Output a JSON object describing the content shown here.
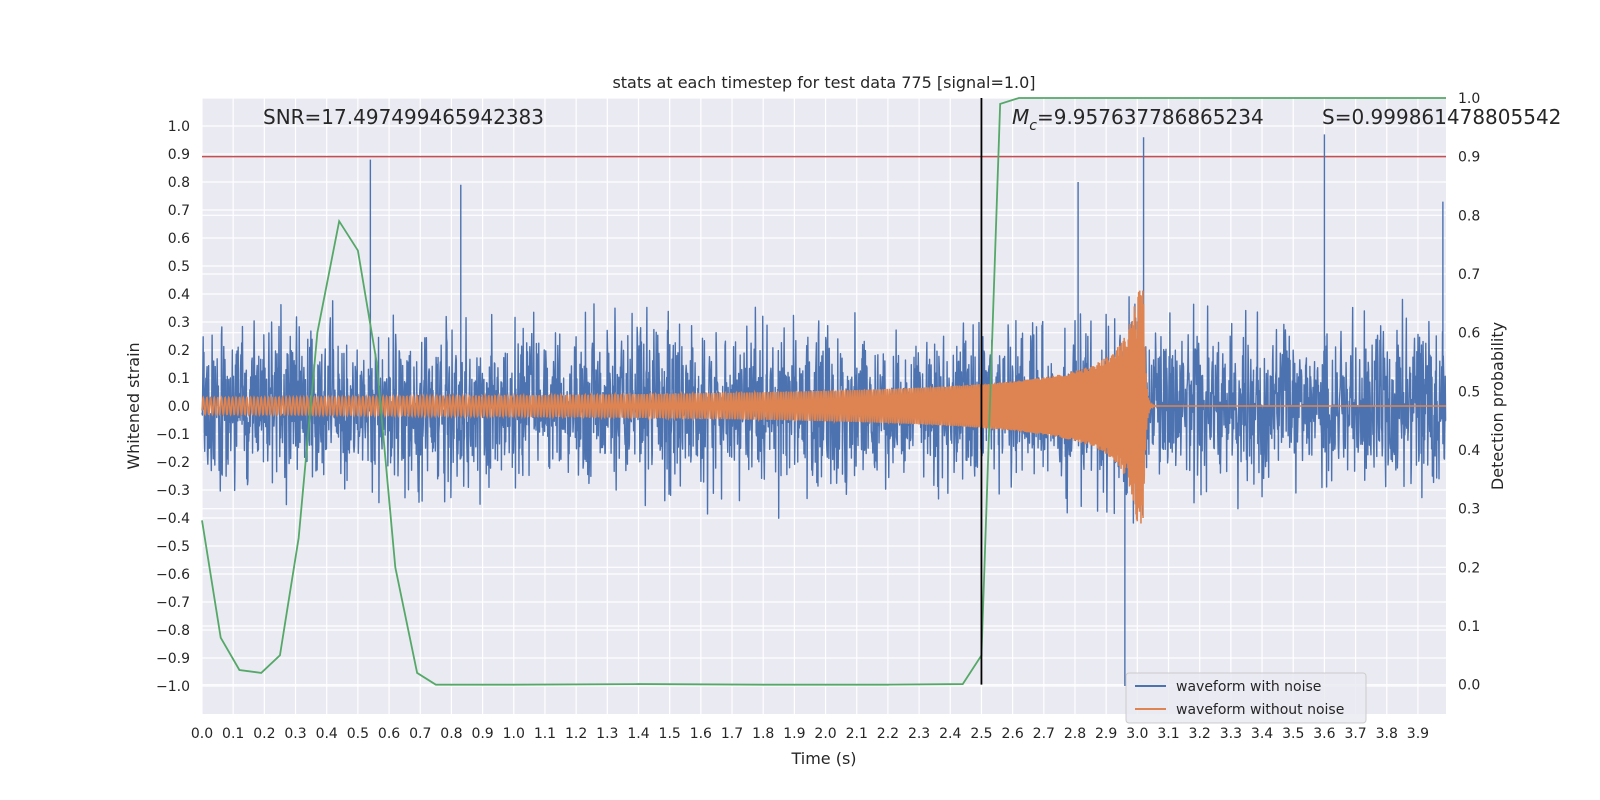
{
  "chart_data": {
    "type": "line",
    "title": "stats at each timestep for test data 775 [signal=1.0]",
    "xlabel": "Time (s)",
    "ylabel": "Whitened strain",
    "y2label": "Detection probability",
    "xlim": [
      0.0,
      3.99
    ],
    "ylim": [
      -1.1,
      1.1
    ],
    "y2lim": [
      -0.05,
      1.0
    ],
    "x_ticks": [
      0.0,
      0.1,
      0.2,
      0.3,
      0.4,
      0.5,
      0.6,
      0.7,
      0.8,
      0.9,
      1.0,
      1.1,
      1.2,
      1.3,
      1.4,
      1.5,
      1.6,
      1.7,
      1.8,
      1.9,
      2.0,
      2.1,
      2.2,
      2.3,
      2.4,
      2.5,
      2.6,
      2.7,
      2.8,
      2.9,
      3.0,
      3.1,
      3.2,
      3.3,
      3.4,
      3.5,
      3.6,
      3.7,
      3.8,
      3.9
    ],
    "y_ticks": [
      1.0,
      0.9,
      0.8,
      0.7,
      0.6,
      0.5,
      0.4,
      0.3,
      0.2,
      0.1,
      0.0,
      -0.1,
      -0.2,
      -0.3,
      -0.4,
      -0.5,
      -0.6,
      -0.7,
      -0.8,
      -0.9,
      -1.0
    ],
    "y_tick_labels": [
      "1.0",
      "0.9",
      "0.8",
      "0.7",
      "0.6",
      "0.5",
      "0.4",
      "0.3",
      "0.2",
      "0.1",
      "0.0",
      "−0.1",
      "−0.2",
      "−0.3",
      "−0.4",
      "−0.5",
      "−0.6",
      "−0.7",
      "−0.8",
      "−0.9",
      "−1.0"
    ],
    "y2_ticks": [
      0.0,
      0.1,
      0.2,
      0.3,
      0.4,
      0.5,
      0.6,
      0.7,
      0.8,
      0.9,
      1.0
    ],
    "grid": true,
    "legend_position": "bottom-right",
    "annotations": {
      "snr": "SNR=17.497499465942383",
      "mc_symbol": "M",
      "mc_sub": "c",
      "mc_value": "=9.957637786865234",
      "s": "S=0.999861478805542"
    },
    "threshold_line": {
      "axis": "y2",
      "value": 0.9,
      "color": "#c44e52"
    },
    "vertical_marker": {
      "x": 2.5,
      "color": "#000000"
    },
    "series": [
      {
        "name": "waveform with noise",
        "color": "#4c72b0",
        "axis": "y",
        "kind": "noise",
        "x_range": [
          0.0,
          3.99
        ],
        "amplitude_typical": 0.35,
        "notable_spikes": [
          {
            "x": 0.54,
            "y": 0.88
          },
          {
            "x": 0.83,
            "y": 0.79
          },
          {
            "x": 2.96,
            "y": -1.0
          },
          {
            "x": 3.02,
            "y": 0.96
          },
          {
            "x": 3.6,
            "y": 0.97
          },
          {
            "x": 2.81,
            "y": 0.8
          },
          {
            "x": 3.98,
            "y": 0.73
          }
        ]
      },
      {
        "name": "waveform without noise",
        "color": "#dd8452",
        "axis": "y",
        "kind": "chirp",
        "x_range": [
          0.0,
          3.99
        ],
        "merger_x": 3.02,
        "start_amplitude": 0.03,
        "peak_amplitude": 0.42
      },
      {
        "name": "detection probability",
        "color": "#55a868",
        "axis": "y2",
        "x": [
          0.0,
          0.06,
          0.12,
          0.19,
          0.25,
          0.31,
          0.37,
          0.44,
          0.5,
          0.56,
          0.62,
          0.69,
          0.75,
          0.81,
          1.0,
          1.4,
          1.8,
          2.2,
          2.44,
          2.5,
          2.56,
          2.62,
          3.0,
          3.5,
          3.99
        ],
        "y": [
          0.28,
          0.08,
          0.025,
          0.02,
          0.05,
          0.25,
          0.6,
          0.79,
          0.74,
          0.55,
          0.2,
          0.02,
          0.0,
          0.0,
          0.0,
          0.001,
          0.0,
          0.0,
          0.001,
          0.05,
          0.99,
          1.0,
          1.0,
          1.0,
          1.0
        ]
      }
    ]
  }
}
